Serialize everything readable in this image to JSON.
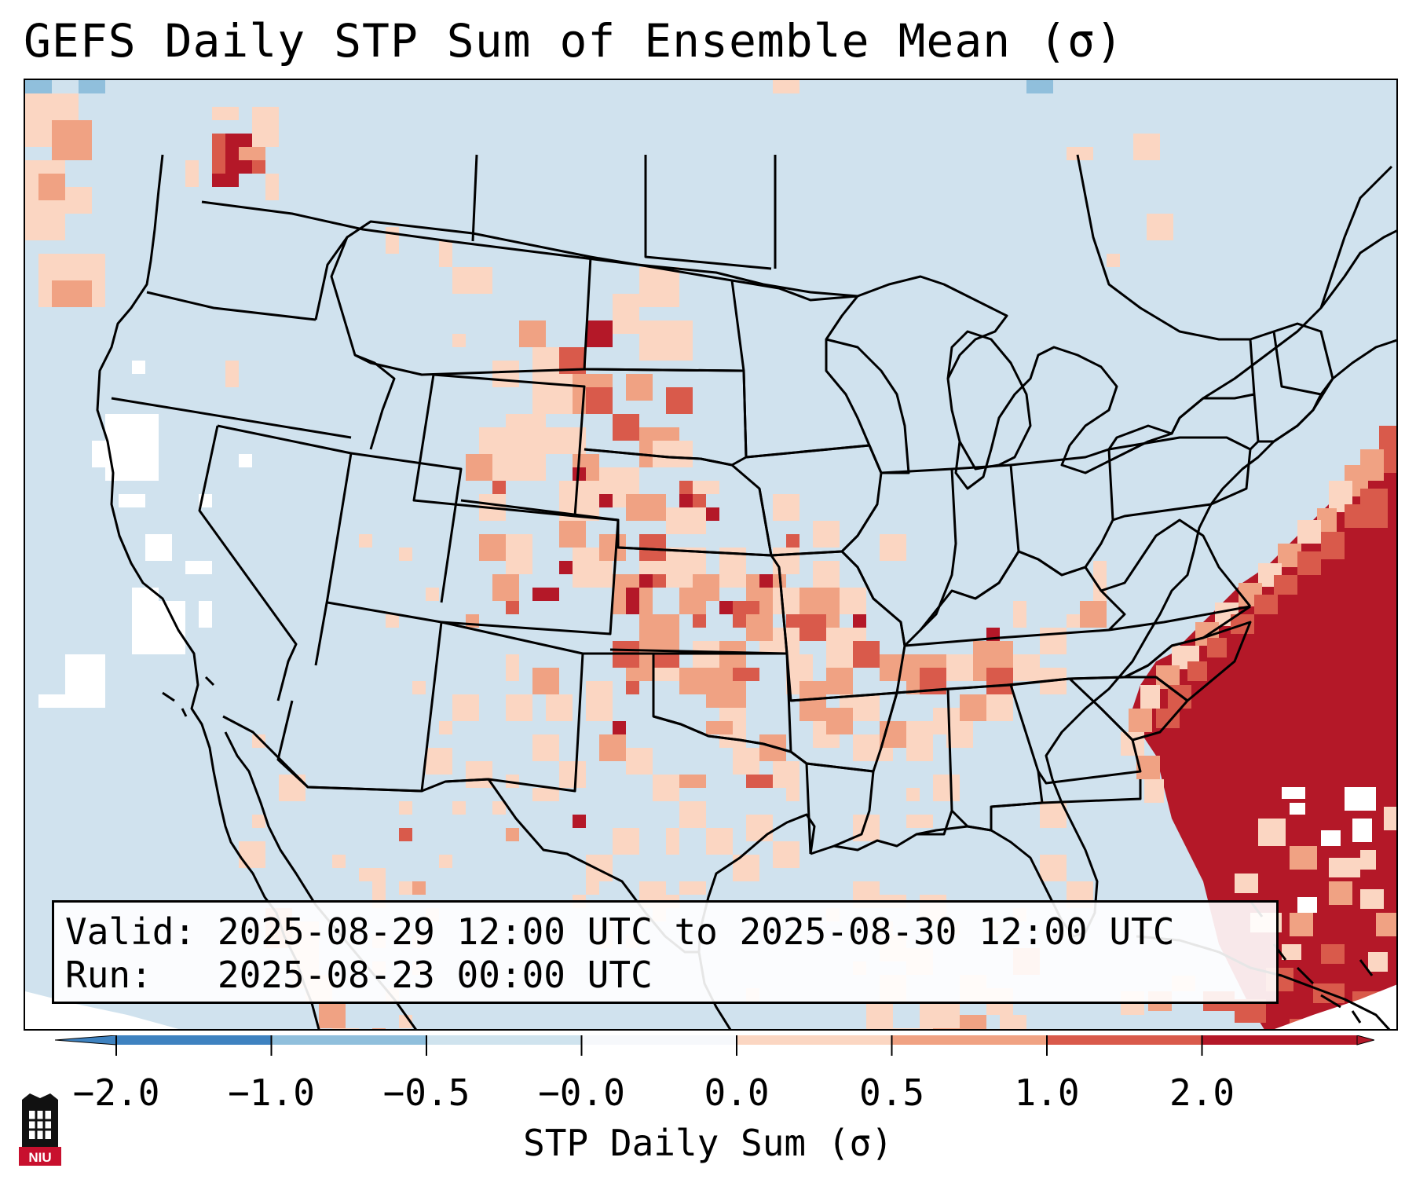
{
  "title": "GEFS Daily STP Sum of Ensemble Mean (σ)",
  "info": {
    "valid_label": "Valid:",
    "valid_value": "2025-08-29 12:00 UTC to 2025-08-30 12:00 UTC",
    "run_label": "Run:",
    "run_value": "2025-08-23 00:00 UTC"
  },
  "colorbar": {
    "label": "STP Daily Sum (σ)",
    "ticks": [
      "−2.0",
      "−1.0",
      "−0.5",
      "−0.0",
      "0.0",
      "0.5",
      "1.0",
      "2.0"
    ],
    "bin_colors": [
      "#3e82c0",
      "#90bfdc",
      "#cfe3ee",
      "#f6f8fb",
      "#fbd6c2",
      "#f0a283",
      "#d95a4b",
      "#b41828"
    ],
    "under_color": "#3e82c0",
    "over_color": "#b41828"
  },
  "map": {
    "background_color": "#d0e2ee",
    "level_colors": {
      "0": "#fbd6c2",
      "1": "#f0a283",
      "2": "#d95a4b",
      "3": "#b41828",
      "w": "#ffffff",
      "b": "#90bfdc"
    }
  },
  "logo": {
    "text": "NIU",
    "color": "#c8102e"
  }
}
